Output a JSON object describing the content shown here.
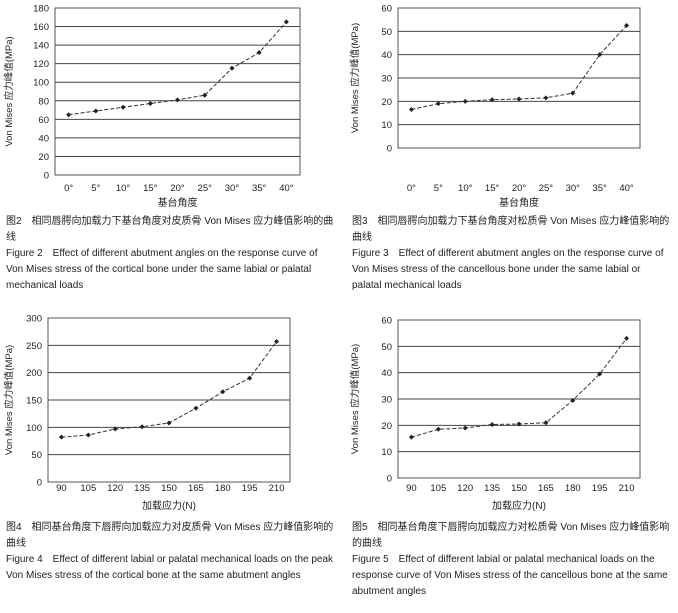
{
  "chart_data": [
    {
      "type": "line",
      "ylabel": "Von Mises 应力峰值(MPa)",
      "xlabel": "基台角度",
      "categories": [
        "0°",
        "5°",
        "10°",
        "15°",
        "20°",
        "25°",
        "30°",
        "35°",
        "40°"
      ],
      "values": [
        65,
        69,
        73,
        77,
        81,
        86,
        115,
        132,
        165
      ],
      "ylim": [
        0,
        180
      ],
      "yticks": [
        "0",
        "20",
        "40",
        "60",
        "80",
        "100",
        "120",
        "140",
        "160",
        "180"
      ],
      "grid": true,
      "caption_zh": "图2　相同唇腭向加载力下基台角度对皮质骨 Von Mises 应力峰值影响的曲线",
      "caption_en": "Figure 2　Effect of different abutment angles on the response curve of Von Mises stress of the cortical bone under the same labial or palatal mechanical loads"
    },
    {
      "type": "line",
      "ylabel": "Von Mises 应力峰值(MPa)",
      "xlabel": "基台角度",
      "categories": [
        "0°",
        "5°",
        "10°",
        "15°",
        "20°",
        "25°",
        "30°",
        "35°",
        "40°"
      ],
      "values": [
        16.5,
        19,
        20,
        20.7,
        21,
        21.5,
        23.5,
        40,
        52.5
      ],
      "ylim": [
        0,
        60
      ],
      "yticks": [
        "0",
        "10",
        "20",
        "30",
        "40",
        "50",
        "60"
      ],
      "grid": true,
      "caption_zh": "图3　相同唇腭向加载力下基台角度对松质骨 Von Mises 应力峰值影响的曲线",
      "caption_en": "Figure 3　Effect of different abutment angles on the response curve of Von Mises stress of the cancellous bone under the same labial or palatal mechanical loads"
    },
    {
      "type": "line",
      "ylabel": "Von Mises 应力峰值(MPa)",
      "xlabel": "加载应力(N)",
      "categories": [
        "90",
        "105",
        "120",
        "135",
        "150",
        "165",
        "180",
        "195",
        "210"
      ],
      "values": [
        82,
        86,
        97,
        101,
        108,
        135,
        165,
        190,
        257
      ],
      "ylim": [
        0,
        300
      ],
      "yticks": [
        "0",
        "50",
        "100",
        "150",
        "200",
        "250",
        "300"
      ],
      "grid": true,
      "caption_zh": "图4　相同基台角度下唇腭向加载应力对皮质骨 Von Mises 应力峰值影响的曲线",
      "caption_en": "Figure 4　Effect of different labial or palatal mechanical loads on the peak Von Mises stress of the cortical bone at the same abutment angles"
    },
    {
      "type": "line",
      "ylabel": "Von Mises 应力峰值(MPa)",
      "xlabel": "加载应力(N)",
      "categories": [
        "90",
        "105",
        "120",
        "135",
        "150",
        "165",
        "180",
        "195",
        "210"
      ],
      "values": [
        15.5,
        18.5,
        19,
        20.3,
        20.5,
        21,
        29.5,
        39.5,
        53
      ],
      "ylim": [
        0,
        60
      ],
      "yticks": [
        "0",
        "10",
        "20",
        "30",
        "40",
        "50",
        "60"
      ],
      "grid": true,
      "caption_zh": "图5　相同基台角度下唇腭向加载应力对松质骨 Von Mises 应力峰值影响的曲线",
      "caption_en": "Figure 5　Effect of different labial or palatal mechanical loads on the response curve of Von Mises stress of the cancellous bone at the same abutment angles"
    }
  ]
}
